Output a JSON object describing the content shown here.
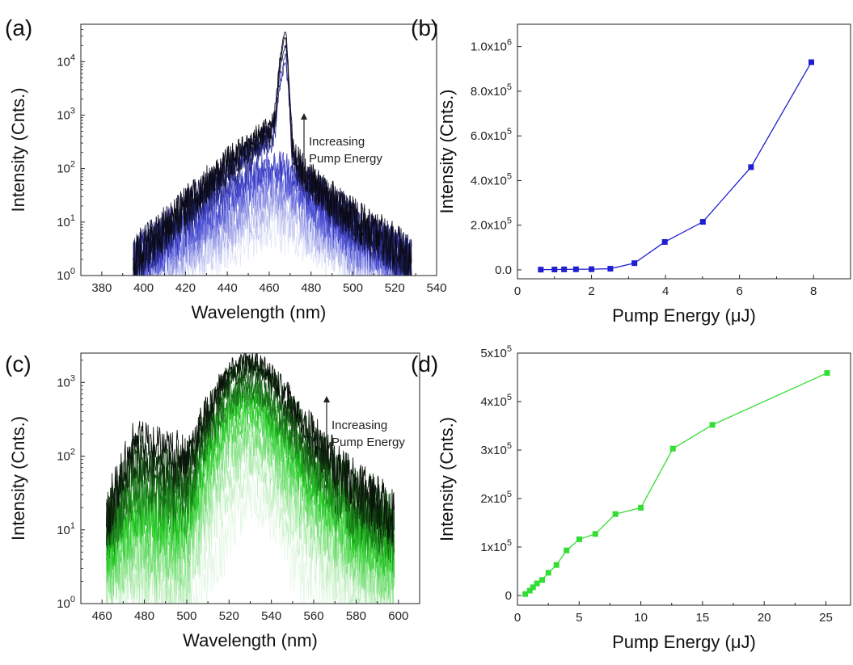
{
  "chart_data": [
    {
      "panel": "(a)",
      "type": "line",
      "xlabel": "Wavelength (nm)",
      "ylabel": "Intensity (Cnts.)",
      "xlim": [
        370,
        540
      ],
      "ylim": [
        1,
        50000
      ],
      "yscale": "log",
      "x_ticks": [
        380,
        400,
        420,
        440,
        460,
        480,
        500,
        520,
        540
      ],
      "y_ticks": [
        1,
        10,
        100,
        1000,
        10000
      ],
      "y_tick_labels": [
        {
          "base": "10",
          "exp": "0"
        },
        {
          "base": "10",
          "exp": "1"
        },
        {
          "base": "10",
          "exp": "2"
        },
        {
          "base": "10",
          "exp": "3"
        },
        {
          "base": "10",
          "exp": "4"
        }
      ],
      "annotation": [
        "Increasing",
        "Pump Energy"
      ],
      "color_gradient": [
        "#dfe3f7",
        "#3b3fd0",
        "#0a0a14"
      ],
      "series": [
        {
          "x": [
            395,
            420,
            440,
            452,
            458,
            461,
            465,
            468,
            471,
            480,
            500,
            528
          ],
          "values": [
            1.1,
            1.6,
            3,
            5.5,
            7,
            7.5,
            7,
            6.5,
            6,
            3.5,
            1.6,
            1.1
          ]
        },
        {
          "x": [
            395,
            420,
            440,
            452,
            458,
            461,
            465,
            468,
            471,
            480,
            500,
            528
          ],
          "values": [
            1.1,
            2,
            5,
            10,
            14,
            15,
            14,
            13,
            11,
            6,
            2,
            1.1
          ]
        },
        {
          "x": [
            395,
            420,
            440,
            452,
            458,
            461,
            465,
            468,
            471,
            480,
            500,
            528
          ],
          "values": [
            1.1,
            3,
            8,
            17,
            24,
            26,
            24,
            22,
            18,
            9,
            2.5,
            1.2
          ]
        },
        {
          "x": [
            395,
            420,
            440,
            452,
            458,
            461,
            465,
            468,
            471,
            480,
            500,
            528
          ],
          "values": [
            1.2,
            4,
            12,
            27,
            38,
            40,
            38,
            34,
            28,
            13,
            3,
            1.2
          ]
        },
        {
          "x": [
            395,
            420,
            440,
            452,
            458,
            461,
            465,
            468,
            471,
            480,
            500,
            528
          ],
          "values": [
            1.2,
            5,
            18,
            40,
            55,
            60,
            56,
            50,
            40,
            17,
            4,
            1.3
          ]
        },
        {
          "x": [
            395,
            420,
            440,
            452,
            458,
            461,
            465,
            468,
            471,
            480,
            500,
            528
          ],
          "values": [
            1.3,
            6.5,
            25,
            58,
            80,
            85,
            80,
            72,
            55,
            22,
            5,
            1.4
          ]
        },
        {
          "x": [
            395,
            420,
            440,
            452,
            458,
            461,
            465,
            468,
            471,
            480,
            500,
            528
          ],
          "values": [
            1.4,
            8,
            35,
            80,
            110,
            118,
            110,
            98,
            72,
            28,
            6,
            1.5
          ]
        },
        {
          "x": [
            395,
            420,
            440,
            452,
            458,
            461,
            463,
            465,
            467,
            468,
            469,
            471,
            473,
            480,
            500,
            528
          ],
          "values": [
            1.6,
            12,
            60,
            150,
            240,
            270,
            600,
            3000,
            8000,
            10000,
            3000,
            150,
            80,
            40,
            8,
            1.7
          ]
        },
        {
          "x": [
            395,
            420,
            440,
            452,
            458,
            461,
            463,
            465,
            467,
            468,
            469,
            471,
            473,
            480,
            500,
            528
          ],
          "values": [
            1.7,
            14,
            75,
            180,
            300,
            330,
            700,
            4000,
            11000,
            14000,
            4000,
            180,
            95,
            45,
            9,
            1.8
          ]
        },
        {
          "x": [
            395,
            420,
            440,
            452,
            458,
            461,
            463,
            465,
            467,
            468,
            469,
            471,
            473,
            480,
            500,
            528
          ],
          "values": [
            1.8,
            16,
            90,
            220,
            360,
            400,
            900,
            6000,
            17000,
            22000,
            6000,
            220,
            110,
            50,
            10,
            1.9
          ]
        },
        {
          "x": [
            395,
            420,
            440,
            452,
            458,
            461,
            463,
            465,
            467,
            468,
            469,
            471,
            473,
            480,
            500,
            528
          ],
          "values": [
            1.9,
            18,
            110,
            270,
            430,
            480,
            1100,
            8000,
            24000,
            30000,
            8000,
            270,
            130,
            55,
            11,
            2
          ]
        },
        {
          "x": [
            395,
            420,
            440,
            452,
            458,
            461,
            463,
            465,
            467,
            468,
            469,
            471,
            473,
            480,
            500,
            528
          ],
          "values": [
            2,
            20,
            130,
            320,
            500,
            560,
            1300,
            10000,
            30000,
            38000,
            10000,
            320,
            150,
            60,
            12,
            2
          ]
        }
      ]
    },
    {
      "panel": "(b)",
      "type": "line",
      "xlabel": "Pump Energy (μJ)",
      "ylabel": "Intensity (Cnts.)",
      "xlim": [
        0,
        9
      ],
      "ylim": [
        -40000,
        1100000
      ],
      "x_ticks": [
        0,
        2,
        4,
        6,
        8
      ],
      "y_ticks": [
        0,
        200000,
        400000,
        600000,
        800000,
        1000000
      ],
      "y_tick_labels": [
        {
          "base": "0.0",
          "exp": ""
        },
        {
          "base": "2.0x10",
          "exp": "5"
        },
        {
          "base": "4.0x10",
          "exp": "5"
        },
        {
          "base": "6.0x10",
          "exp": "5"
        },
        {
          "base": "8.0x10",
          "exp": "5"
        },
        {
          "base": "1.0x10",
          "exp": "6"
        }
      ],
      "color": "#1f1fd0",
      "x": [
        0.63,
        1.0,
        1.26,
        1.58,
        2.0,
        2.51,
        3.16,
        3.98,
        5.01,
        6.31,
        7.94
      ],
      "values": [
        1000,
        1500,
        2000,
        2500,
        3000,
        5000,
        30000,
        125000,
        215000,
        460000,
        930000
      ]
    },
    {
      "panel": "(c)",
      "type": "line",
      "xlabel": "Wavelength (nm)",
      "ylabel": "Intensity (Cnts.)",
      "xlim": [
        450,
        610
      ],
      "ylim": [
        1,
        2500
      ],
      "yscale": "log",
      "x_ticks": [
        460,
        480,
        500,
        520,
        540,
        560,
        580,
        600
      ],
      "y_ticks": [
        1,
        10,
        100,
        1000
      ],
      "y_tick_labels": [
        {
          "base": "10",
          "exp": "0"
        },
        {
          "base": "10",
          "exp": "1"
        },
        {
          "base": "10",
          "exp": "2"
        },
        {
          "base": "10",
          "exp": "3"
        }
      ],
      "annotation": [
        "Increasing",
        "Pump Energy"
      ],
      "color_gradient": [
        "#e4f7e4",
        "#22cc22",
        "#0a140a"
      ],
      "series": [
        {
          "x": [
            475,
            495,
            505,
            515,
            522,
            528,
            534,
            542,
            552,
            560,
            575,
            598
          ],
          "values": [
            1,
            1,
            1.2,
            4,
            14,
            26,
            24,
            12,
            3,
            1.2,
            1,
            1
          ]
        },
        {
          "x": [
            462,
            475,
            490,
            500,
            510,
            520,
            528,
            535,
            545,
            560,
            580,
            598
          ],
          "values": [
            1.3,
            2,
            1.8,
            1.6,
            10,
            40,
            60,
            50,
            20,
            5,
            1.8,
            1.3
          ]
        },
        {
          "x": [
            462,
            475,
            490,
            500,
            510,
            520,
            528,
            535,
            545,
            560,
            580,
            598
          ],
          "values": [
            1.8,
            3,
            2.7,
            2.5,
            20,
            75,
            110,
            90,
            38,
            9,
            2.8,
            1.8
          ]
        },
        {
          "x": [
            462,
            475,
            490,
            500,
            510,
            520,
            528,
            535,
            545,
            560,
            580,
            598
          ],
          "values": [
            2.5,
            5,
            4,
            4,
            35,
            120,
            180,
            150,
            60,
            14,
            4,
            2.5
          ]
        },
        {
          "x": [
            462,
            475,
            490,
            500,
            510,
            520,
            528,
            535,
            545,
            560,
            580,
            598
          ],
          "values": [
            3,
            7,
            6,
            6,
            50,
            170,
            250,
            210,
            85,
            20,
            5,
            3
          ]
        },
        {
          "x": [
            462,
            475,
            490,
            500,
            510,
            520,
            528,
            535,
            545,
            560,
            580,
            598
          ],
          "values": [
            4,
            11,
            9,
            9,
            70,
            240,
            340,
            290,
            120,
            28,
            7,
            4
          ]
        },
        {
          "x": [
            462,
            475,
            490,
            500,
            510,
            520,
            528,
            535,
            545,
            560,
            580,
            598
          ],
          "values": [
            5,
            15,
            12,
            12,
            90,
            310,
            440,
            380,
            155,
            36,
            9,
            5
          ]
        },
        {
          "x": [
            462,
            475,
            490,
            500,
            510,
            520,
            528,
            535,
            545,
            560,
            580,
            598
          ],
          "values": [
            6,
            20,
            16,
            16,
            120,
            390,
            560,
            480,
            200,
            46,
            11,
            6
          ]
        },
        {
          "x": [
            462,
            475,
            490,
            500,
            510,
            520,
            528,
            535,
            545,
            560,
            580,
            598
          ],
          "values": [
            7,
            27,
            22,
            20,
            150,
            480,
            680,
            590,
            250,
            58,
            13,
            7
          ]
        },
        {
          "x": [
            462,
            475,
            490,
            500,
            510,
            520,
            528,
            535,
            545,
            560,
            580,
            598
          ],
          "values": [
            8,
            35,
            28,
            25,
            180,
            580,
            800,
            700,
            300,
            70,
            16,
            8
          ]
        },
        {
          "x": [
            462,
            475,
            490,
            500,
            510,
            520,
            528,
            535,
            545,
            560,
            580,
            598
          ],
          "values": [
            9,
            42,
            34,
            30,
            210,
            640,
            900,
            790,
            340,
            80,
            18,
            9
          ]
        },
        {
          "x": [
            462,
            475,
            490,
            500,
            510,
            520,
            528,
            535,
            545,
            560,
            580,
            598
          ],
          "values": [
            11,
            80,
            60,
            55,
            300,
            1000,
            1400,
            1250,
            560,
            130,
            28,
            11
          ]
        },
        {
          "x": [
            462,
            475,
            490,
            500,
            510,
            520,
            528,
            535,
            545,
            560,
            580,
            598
          ],
          "values": [
            13,
            100,
            78,
            70,
            360,
            1150,
            1700,
            1500,
            680,
            160,
            34,
            13
          ]
        },
        {
          "x": [
            462,
            475,
            490,
            500,
            510,
            520,
            528,
            535,
            545,
            560,
            580,
            598
          ],
          "values": [
            15,
            165,
            125,
            110,
            450,
            1400,
            2000,
            1800,
            820,
            190,
            40,
            15
          ]
        }
      ]
    },
    {
      "panel": "(d)",
      "type": "line",
      "xlabel": "Pump Energy (μJ)",
      "ylabel": "Intensity (Cnts.)",
      "xlim": [
        0,
        27
      ],
      "ylim": [
        -20000,
        500000
      ],
      "x_ticks": [
        0,
        5,
        10,
        15,
        20,
        25
      ],
      "y_ticks": [
        0,
        100000,
        200000,
        300000,
        400000,
        500000
      ],
      "y_tick_labels": [
        {
          "base": "0",
          "exp": ""
        },
        {
          "base": "1x10",
          "exp": "5"
        },
        {
          "base": "2x10",
          "exp": "5"
        },
        {
          "base": "3x10",
          "exp": "5"
        },
        {
          "base": "4x10",
          "exp": "5"
        },
        {
          "base": "5x10",
          "exp": "5"
        }
      ],
      "color": "#33dd33",
      "x": [
        0.63,
        1.0,
        1.26,
        1.58,
        2.0,
        2.51,
        3.16,
        3.98,
        5.01,
        6.31,
        7.94,
        10.0,
        12.6,
        15.8,
        25.1
      ],
      "values": [
        3000,
        10000,
        17000,
        25000,
        32000,
        47000,
        63000,
        93000,
        116000,
        127000,
        168000,
        181000,
        303000,
        352000,
        459000
      ]
    }
  ]
}
